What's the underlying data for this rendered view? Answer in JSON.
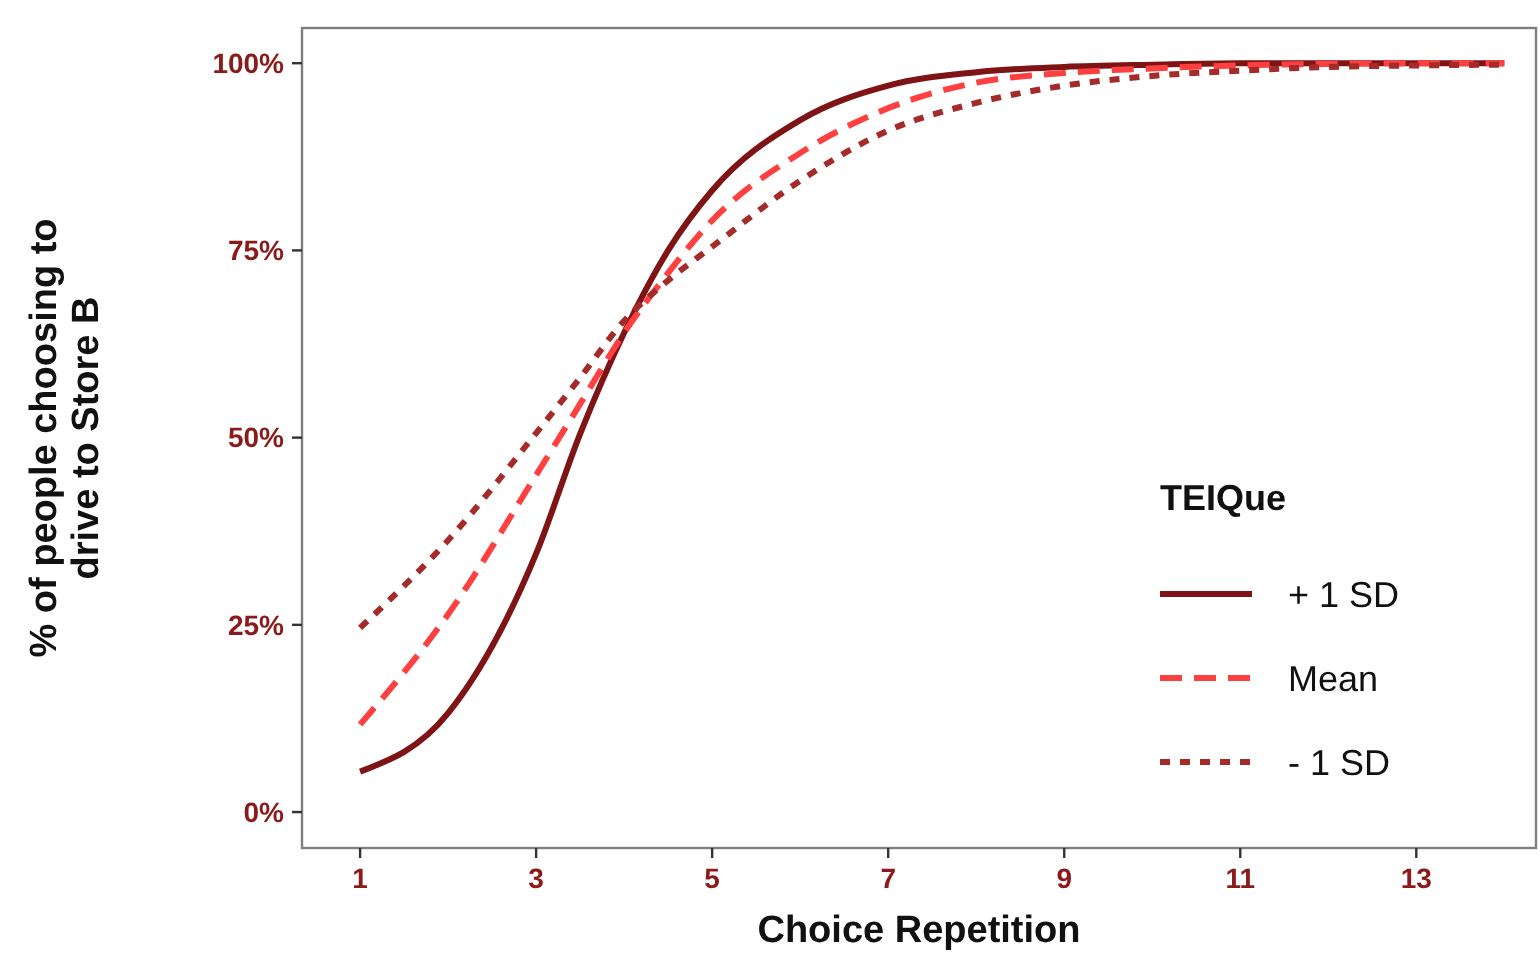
{
  "chart_data": {
    "type": "line",
    "xlabel": "Choice Repetition",
    "ylabel": "% of people choosing to drive to Store B",
    "legend_title": "TEIQue",
    "legend": "bottom right",
    "grid": false,
    "x": [
      1,
      2,
      3,
      3.5,
      4,
      4.5,
      5,
      6,
      7,
      8,
      9,
      10,
      11,
      12,
      13,
      14
    ],
    "xlim": [
      0.34,
      14.36
    ],
    "xticks": [
      1,
      3,
      5,
      7,
      9,
      11,
      13
    ],
    "ylim": [
      -4.8,
      104.7
    ],
    "yticks": [
      {
        "value": 0,
        "label": "0%"
      },
      {
        "value": 25,
        "label": "25%"
      },
      {
        "value": 50,
        "label": "50%"
      },
      {
        "value": 75,
        "label": "75%"
      },
      {
        "value": 100,
        "label": "100%"
      }
    ],
    "series": [
      {
        "name": "+ 1 SD",
        "color": "#7f1416",
        "line_style": "solid",
        "values": [
          5.4,
          13.2,
          34.5,
          50.5,
          64,
          75,
          83,
          92.4,
          97,
          98.8,
          99.5,
          99.8,
          100,
          100,
          100,
          100
        ]
      },
      {
        "name": "Mean",
        "color": "#ff4040",
        "line_style": "dashed",
        "values": [
          11.7,
          26.4,
          45,
          54.5,
          64,
          72,
          79,
          88,
          94,
          97.4,
          98.7,
          99.3,
          99.7,
          99.9,
          100,
          100
        ]
      },
      {
        "name": "- 1 SD",
        "color": "#a52a2a",
        "line_style": "dotted",
        "values": [
          24.6,
          36.3,
          50.6,
          58,
          65.6,
          71,
          75.5,
          84.3,
          91,
          94.7,
          97,
          98.3,
          99,
          99.5,
          99.7,
          99.8
        ]
      }
    ]
  }
}
